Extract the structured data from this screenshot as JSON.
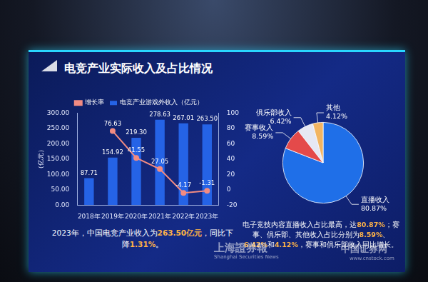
{
  "title": "电竞产业实际收入及占比情况",
  "chart_data": [
    {
      "type": "bar",
      "categories": [
        "2018年",
        "2019年",
        "2020年",
        "2021年",
        "2022年",
        "2023年"
      ],
      "series": [
        {
          "name": "电竞产业游戏外收入（亿元）",
          "type": "bar",
          "color": "#2563e6",
          "values": [
            87.71,
            154.92,
            219.3,
            278.63,
            267.01,
            263.5
          ],
          "value_labels": [
            "87.71",
            "154.92",
            "219.30",
            "278.63",
            "267.01",
            "263.50"
          ]
        },
        {
          "name": "增长率",
          "type": "line",
          "axis": "y2",
          "color": "#f28b82",
          "marker": "circle",
          "line_style": "solid",
          "values": [
            null,
            76.63,
            41.55,
            27.05,
            -4.17,
            -1.31
          ]
        }
      ],
      "ylabel": "（亿元）",
      "ylim": [
        0,
        300
      ],
      "yticks": [
        {
          "value": 0,
          "label": "0.00"
        },
        {
          "value": 50,
          "label": "50.00"
        },
        {
          "value": 100,
          "label": "100.00"
        },
        {
          "value": 150,
          "label": "150.00"
        },
        {
          "value": 200,
          "label": "200.00"
        },
        {
          "value": 250,
          "label": "250.00"
        },
        {
          "value": 300,
          "label": "300.00"
        }
      ],
      "y2lim": [
        -20,
        100
      ],
      "y2ticks": [
        -20,
        0,
        20,
        40,
        60,
        80,
        100
      ],
      "legend": "top",
      "grid": false,
      "data_labels": true,
      "annotation": [
        "2023年，中国电竞产业收入为",
        "263.50亿元",
        "，同比下降",
        "1.31%",
        "。"
      ]
    },
    {
      "type": "pie",
      "categories": [
        "直播收入",
        "赛事收入",
        "俱乐部收入",
        "其他"
      ],
      "values": [
        80.87,
        8.59,
        6.42,
        4.12
      ],
      "value_labels": [
        "80.87%",
        "8.59%",
        "6.42%",
        "4.12%"
      ],
      "colors": [
        "#1f6fe8",
        "#e44a4a",
        "#e6e8f4",
        "#f2b562"
      ],
      "data_labels": true,
      "annotation": [
        "电子竞技内容直播收入占比最高，达",
        "80.87%",
        "；赛事、俱乐部、其他收入占比分别为",
        "8.59%",
        "、",
        "6.42%",
        "和",
        "4.12%",
        "，赛事和俱乐部收入同比增长。"
      ]
    }
  ],
  "watermarks": [
    "上海證券報",
    "Shanghai Securities News",
    "中国证券网",
    "www.cnstock.com"
  ]
}
